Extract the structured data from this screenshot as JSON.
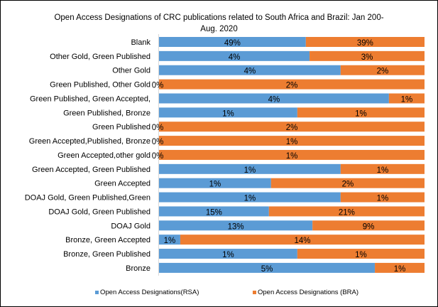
{
  "chart_data": {
    "type": "bar",
    "stacked": "100%",
    "orientation": "horizontal",
    "title": "Open Access Designations of CRC publications related to South Africa and Brazil: Jan 200-Aug. 2020",
    "title_lines": [
      "Open Access Designations of CRC publications related to South Africa and Brazil: Jan 200-",
      "Aug. 2020"
    ],
    "categories": [
      "Blank",
      "Other Gold, Green Published",
      "Other Gold",
      "Green Published, Other Gold",
      "Green Published, Green Accepted,",
      "Green Published, Bronze",
      "Green Published",
      "Green Accepted,Published, Bronze",
      "Green Accepted,other gold",
      "Green Accepted, Green Published",
      "Green Accepted",
      "DOAJ Gold, Green Published,Green",
      "DOAJ Gold, Green Published",
      "DOAJ Gold",
      "Bronze, Green Accepted",
      "Bronze, Green Published",
      "Bronze"
    ],
    "series": [
      {
        "name": "Open Access Designations(RSA)",
        "color": "#5b9bd5",
        "labels": [
          "49%",
          "4%",
          "4%",
          "0%",
          "4%",
          "1%",
          "0%",
          "0%",
          "0%",
          "1%",
          "1%",
          "1%",
          "15%",
          "13%",
          "1%",
          "1%",
          "5%"
        ],
        "share": [
          0.553,
          0.567,
          0.684,
          0,
          0.866,
          0.521,
          0,
          0,
          0,
          0.684,
          0.422,
          0.684,
          0.414,
          0.578,
          0.08,
          0.521,
          0.813
        ]
      },
      {
        "name": "Open Access Designations (BRA)",
        "color": "#ed7d31",
        "labels": [
          "39%",
          "3%",
          "2%",
          "2%",
          "1%",
          "1%",
          "2%",
          "1%",
          "1%",
          "1%",
          "2%",
          "1%",
          "21%",
          "9%",
          "14%",
          "1%",
          "1%"
        ]
      }
    ],
    "xlim": [
      0,
      1
    ],
    "grid": false,
    "legend": "bottom"
  }
}
